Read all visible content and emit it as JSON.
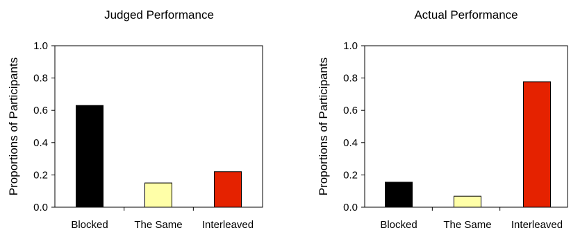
{
  "chart_data": [
    {
      "type": "bar",
      "title": "Judged Performance",
      "ylabel": "Proportions of Participants",
      "xlabel": "",
      "ylim": [
        0,
        1.0
      ],
      "yticks": [
        "0.0",
        "0.2",
        "0.4",
        "0.6",
        "0.8",
        "1.0"
      ],
      "categories": [
        "Blocked",
        "The Same",
        "Interleaved"
      ],
      "values": [
        0.63,
        0.15,
        0.22
      ],
      "colors": [
        "#000000",
        "#ffffa8",
        "#e52200"
      ],
      "grid": false,
      "legend": "none"
    },
    {
      "type": "bar",
      "title": "Actual Performance",
      "ylabel": "Proportions of Participants",
      "xlabel": "",
      "ylim": [
        0,
        1.0
      ],
      "yticks": [
        "0.0",
        "0.2",
        "0.4",
        "0.6",
        "0.8",
        "1.0"
      ],
      "categories": [
        "Blocked",
        "The Same",
        "Interleaved"
      ],
      "values": [
        0.155,
        0.068,
        0.777
      ],
      "colors": [
        "#000000",
        "#ffffa8",
        "#e52200"
      ],
      "grid": false,
      "legend": "none"
    }
  ]
}
